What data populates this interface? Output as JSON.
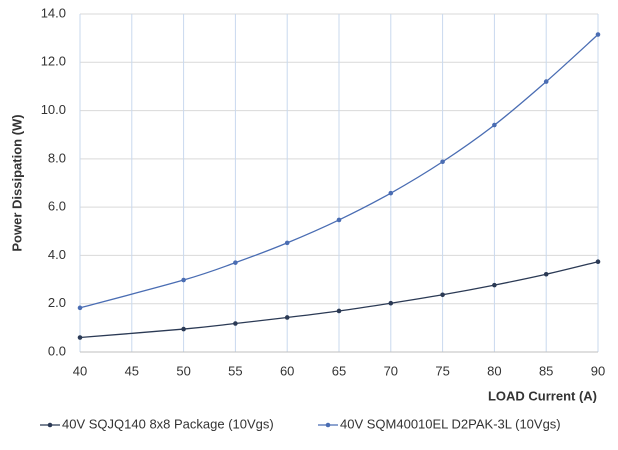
{
  "chart_data": {
    "type": "line",
    "y_label": "Power Dissipation (W)",
    "x_label": "LOAD Current (A)",
    "x": [
      40,
      50,
      55,
      60,
      65,
      70,
      75,
      80,
      85,
      90
    ],
    "series": [
      {
        "name": "40V SQJQ140 8x8 Package (10Vgs)",
        "color": "#2b3a55",
        "values": [
          0.6,
          0.95,
          1.18,
          1.43,
          1.7,
          2.02,
          2.37,
          2.77,
          3.22,
          3.74
        ]
      },
      {
        "name": "40V SQM40010EL D2PAK-3L (10Vgs)",
        "color": "#4a6db3",
        "values": [
          1.83,
          2.98,
          3.7,
          4.52,
          5.47,
          6.58,
          7.88,
          9.4,
          11.2,
          13.15
        ]
      }
    ],
    "xlim": [
      40,
      90
    ],
    "xticks": [
      40,
      45,
      50,
      55,
      60,
      65,
      70,
      75,
      80,
      85,
      90
    ],
    "ylim": [
      0,
      14
    ],
    "yticks": [
      {
        "value": 0,
        "label": "0.0"
      },
      {
        "value": 2,
        "label": "2.0"
      },
      {
        "value": 4,
        "label": "4.0"
      },
      {
        "value": 6,
        "label": "6.0"
      },
      {
        "value": 8,
        "label": "8.0"
      },
      {
        "value": 10,
        "label": "10.0"
      },
      {
        "value": 12,
        "label": "12.0"
      },
      {
        "value": 14,
        "label": "14.0"
      }
    ],
    "grid": true
  }
}
